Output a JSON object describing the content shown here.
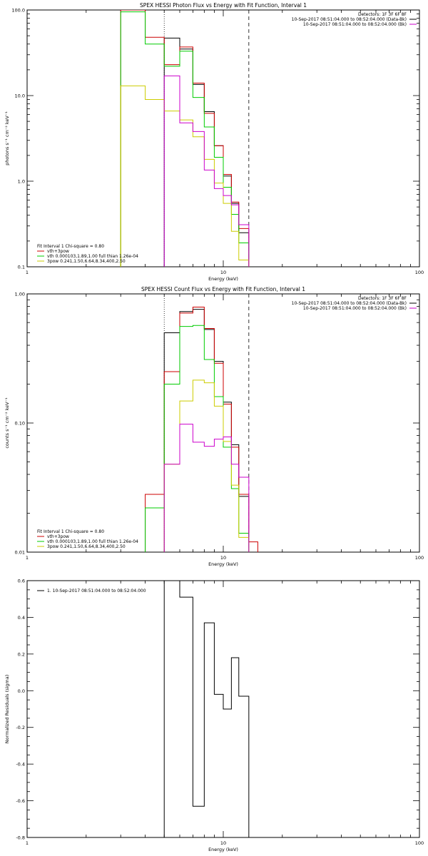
{
  "chart_data": [
    {
      "type": "line",
      "title": "SPEX HESSI Photon Flux vs Energy with Fit Function, Interval 1",
      "xlabel": "Energy (keV)",
      "ylabel": "photons s⁻¹ cm⁻² keV⁻¹",
      "xscale": "log",
      "yscale": "log",
      "xlim": [
        1,
        100
      ],
      "ylim": [
        0.1,
        100
      ],
      "x_ticks": [
        {
          "v": 1,
          "label": "1"
        },
        {
          "v": 10,
          "label": "10"
        },
        {
          "v": 100,
          "label": "100"
        }
      ],
      "y_ticks": [
        {
          "v": 0.1,
          "label": "0.1"
        },
        {
          "v": 1,
          "label": "1.0"
        },
        {
          "v": 10,
          "label": "10.0"
        },
        {
          "v": 100,
          "label": "100.0"
        }
      ],
      "vlines": [
        {
          "x": 5.0,
          "style": "dotted"
        },
        {
          "x": 13.5,
          "style": "dashed"
        }
      ],
      "legend_top": {
        "position": "top-right",
        "lines": [
          {
            "text": "Detectors: 1F 3F 6F 8F",
            "color": ""
          },
          {
            "text": "10-Sep-2017 08:51:04.000 to 08:52:04.000 (Data-Bk)",
            "color": "#000000"
          },
          {
            "text": "10-Sep-2017 08:51:04.000 to 08:52:04.000 (Bk)",
            "color": "#cc00cc"
          }
        ]
      },
      "legend_bottom": {
        "position": "bottom-left",
        "header": "Fit Interval 1   Chi-square = 0.80",
        "lines": [
          {
            "text": "vth+3pow",
            "color": "#cc0000"
          },
          {
            "text": "vth 0.000103,1.89,1.00  full thian 1.26e-04",
            "color": "#00cc00"
          },
          {
            "text": "3pow 0.241,1.50,6.64,8.34,400,2.50",
            "color": "#cccc00"
          }
        ]
      },
      "edges": [
        3.0,
        4.0,
        5.0,
        6.0,
        7.0,
        8.0,
        9.0,
        10.0,
        11.0,
        12.0,
        13.5
      ],
      "series": [
        {
          "color": "#000000",
          "values": [
            null,
            null,
            47,
            35,
            13.5,
            6.5,
            2.6,
            1.15,
            0.55,
            0.25
          ]
        },
        {
          "color": "#cc0000",
          "values": [
            100,
            48,
            23,
            37,
            14,
            6.2,
            2.6,
            1.2,
            0.57,
            0.28
          ]
        },
        {
          "color": "#00cc00",
          "values": [
            95,
            40,
            22,
            33,
            9.5,
            4.3,
            1.9,
            0.85,
            0.41,
            0.19
          ]
        },
        {
          "color": "#cccc00",
          "values": [
            13,
            9,
            6.6,
            5.2,
            3.3,
            1.8,
            0.95,
            0.55,
            0.26,
            0.12
          ]
        },
        {
          "color": "#cc00cc",
          "values": [
            null,
            null,
            17,
            4.8,
            3.8,
            1.35,
            0.82,
            0.68,
            0.53,
            0.31
          ]
        }
      ]
    },
    {
      "type": "line",
      "title": "SPEX HESSI Count Flux vs Energy with Fit Function, Interval 1",
      "xlabel": "Energy (keV)",
      "ylabel": "counts s⁻¹ cm⁻² keV⁻¹",
      "xscale": "log",
      "yscale": "log",
      "xlim": [
        1,
        100
      ],
      "ylim": [
        0.01,
        1
      ],
      "x_ticks": [
        {
          "v": 1,
          "label": "1"
        },
        {
          "v": 10,
          "label": "10"
        },
        {
          "v": 100,
          "label": "100"
        }
      ],
      "y_ticks": [
        {
          "v": 0.01,
          "label": "0.01"
        },
        {
          "v": 0.1,
          "label": "0.10"
        },
        {
          "v": 1,
          "label": "1.00"
        }
      ],
      "vlines": [
        {
          "x": 5.0,
          "style": "dotted"
        },
        {
          "x": 13.5,
          "style": "dashed"
        }
      ],
      "legend_top": {
        "position": "top-right",
        "lines": [
          {
            "text": "Detectors: 1F 3F 6F 8F",
            "color": ""
          },
          {
            "text": "10-Sep-2017 08:51:04.000 to 08:52:04.000 (Data-Bk)",
            "color": "#000000"
          },
          {
            "text": "10-Sep-2017 08:51:04.000 to 08:52:04.000 (Bk)",
            "color": "#cc00cc"
          }
        ]
      },
      "legend_bottom": {
        "position": "bottom-left",
        "header": "Fit Interval 1   Chi-square = 0.80",
        "lines": [
          {
            "text": "vth+3pow",
            "color": "#cc0000"
          },
          {
            "text": "vth 0.000103,1.89,1.00  full thian 1.26e-04",
            "color": "#00cc00"
          },
          {
            "text": "3pow 0.241,1.50,6.64,8.34,400,2.50",
            "color": "#cccc00"
          }
        ]
      },
      "edges": [
        4.0,
        5.0,
        6.0,
        7.0,
        8.0,
        9.0,
        10.0,
        11.0,
        12.0,
        13.5,
        15.0
      ],
      "series": [
        {
          "color": "#000000",
          "values": [
            null,
            0.5,
            0.73,
            0.76,
            0.53,
            0.3,
            0.145,
            0.068,
            0.027,
            null
          ]
        },
        {
          "color": "#cc0000",
          "values": [
            0.028,
            0.25,
            0.71,
            0.79,
            0.54,
            0.29,
            0.14,
            0.065,
            0.028,
            0.012
          ]
        },
        {
          "color": "#00cc00",
          "values": [
            0.022,
            0.2,
            0.56,
            0.57,
            0.31,
            0.16,
            0.065,
            0.031,
            0.014,
            null
          ]
        },
        {
          "color": "#cccc00",
          "values": [
            null,
            0.048,
            0.148,
            0.215,
            0.205,
            0.135,
            0.072,
            0.033,
            0.013,
            null
          ]
        },
        {
          "color": "#cc00cc",
          "values": [
            null,
            0.048,
            0.098,
            0.071,
            0.066,
            0.075,
            0.078,
            0.048,
            0.038,
            null
          ]
        }
      ]
    },
    {
      "type": "line",
      "title": "",
      "xlabel": "Energy (keV)",
      "ylabel": "Normalized Residuals (sigma)",
      "xscale": "log",
      "yscale": "linear",
      "xlim": [
        1,
        100
      ],
      "ylim": [
        -0.8,
        0.6
      ],
      "x_ticks": [
        {
          "v": 1,
          "label": "1"
        },
        {
          "v": 10,
          "label": "10"
        },
        {
          "v": 100,
          "label": "100"
        }
      ],
      "y_ticks": [
        {
          "v": -0.8,
          "label": "-0.8"
        },
        {
          "v": -0.6,
          "label": "-0.6"
        },
        {
          "v": -0.4,
          "label": "-0.4"
        },
        {
          "v": -0.2,
          "label": "-0.2"
        },
        {
          "v": 0.0,
          "label": "0.0"
        },
        {
          "v": 0.2,
          "label": "0.2"
        },
        {
          "v": 0.4,
          "label": "0.4"
        },
        {
          "v": 0.6,
          "label": "0.6"
        }
      ],
      "legend_top": {
        "position": "top-left",
        "lines": [
          {
            "text": "1. 10-Sep-2017 08:51:04.000 to 08:52:04.000",
            "color": "#000000"
          }
        ]
      },
      "edges": [
        5.0,
        6.0,
        7.0,
        8.0,
        9.0,
        10.0,
        11.0,
        12.0,
        13.5
      ],
      "series": [
        {
          "color": "#000000",
          "values": [
            0.62,
            0.51,
            -0.63,
            0.37,
            -0.02,
            -0.1,
            0.18,
            -0.03
          ]
        }
      ]
    }
  ]
}
